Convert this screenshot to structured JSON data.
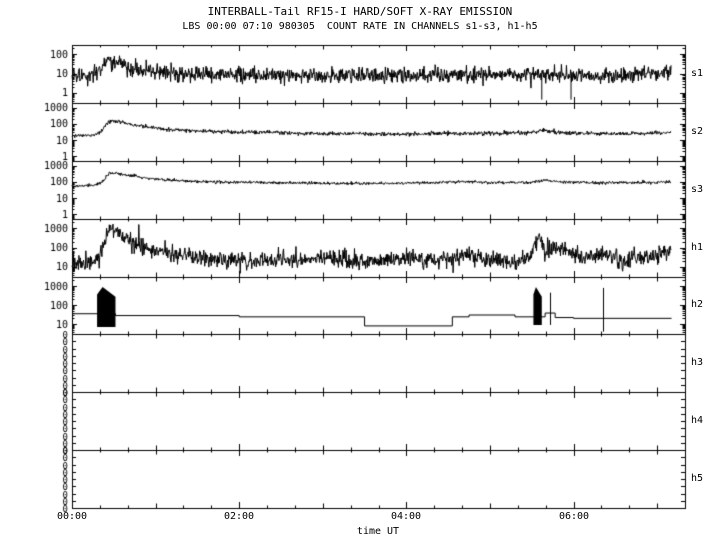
{
  "chart_data": {
    "type": "line",
    "title": "INTERBALL-Tail RF15-I HARD/SOFT X-RAY EMISSION",
    "subtitle": "LBS 00:00 07:10 980305  COUNT RATE IN CHANNELS s1-s3, h1-h5",
    "xlabel": "time UT",
    "background": "#ffffff",
    "axis_color": "#000000",
    "x_axis": {
      "range_hours": [
        0,
        7.3333
      ],
      "data_end_hour": 7.1667,
      "ticks": [
        {
          "hour": 0,
          "label": "00:00"
        },
        {
          "hour": 2,
          "label": "02:00"
        },
        {
          "hour": 4,
          "label": "04:00"
        },
        {
          "hour": 6,
          "label": "06:00"
        }
      ]
    },
    "panels": [
      {
        "label": "s1",
        "scale": "log",
        "y_min": 0.3,
        "y_max": 300,
        "y_ticks": [
          {
            "v": 100,
            "label": "100"
          },
          {
            "v": 10,
            "label": "10"
          },
          {
            "v": 1,
            "label": "1"
          }
        ],
        "style": "noisy",
        "noise_dex": 0.2,
        "seed": 1,
        "envelope": [
          [
            0,
            8
          ],
          [
            0.2,
            8
          ],
          [
            0.3,
            13
          ],
          [
            0.4,
            45
          ],
          [
            0.5,
            40
          ],
          [
            0.65,
            25
          ],
          [
            0.85,
            16
          ],
          [
            1.1,
            11
          ],
          [
            1.5,
            9.5
          ],
          [
            2,
            9
          ],
          [
            2.5,
            8.5
          ],
          [
            3,
            8
          ],
          [
            3.5,
            8
          ],
          [
            4,
            8
          ],
          [
            4.5,
            8.5
          ],
          [
            5,
            8
          ],
          [
            5.5,
            9.5
          ],
          [
            5.8,
            8
          ],
          [
            6.2,
            8
          ],
          [
            6.6,
            8
          ],
          [
            7.0,
            10
          ],
          [
            7.17,
            13
          ]
        ],
        "down_spikes": [
          [
            5.62,
            0.45
          ],
          [
            5.97,
            0.45
          ]
        ],
        "spike_prob": 0.006,
        "spike_factor": 0.25
      },
      {
        "label": "s2",
        "scale": "log",
        "y_min": 0.5,
        "y_max": 2000,
        "y_ticks": [
          {
            "v": 1000,
            "label": "1000"
          },
          {
            "v": 100,
            "label": "100"
          },
          {
            "v": 10,
            "label": "10"
          },
          {
            "v": 1,
            "label": "1"
          }
        ],
        "style": "noisy",
        "noise_dex": 0.06,
        "seed": 2,
        "envelope": [
          [
            0,
            18
          ],
          [
            0.25,
            20
          ],
          [
            0.35,
            35
          ],
          [
            0.45,
            160
          ],
          [
            0.6,
            130
          ],
          [
            0.8,
            75
          ],
          [
            1.1,
            48
          ],
          [
            1.5,
            36
          ],
          [
            2,
            31
          ],
          [
            2.5,
            28
          ],
          [
            3,
            26
          ],
          [
            3.5,
            24
          ],
          [
            4,
            24
          ],
          [
            4.5,
            26
          ],
          [
            5,
            26
          ],
          [
            5.5,
            30
          ],
          [
            5.65,
            42
          ],
          [
            5.8,
            30
          ],
          [
            6.2,
            26
          ],
          [
            6.6,
            25
          ],
          [
            7,
            28
          ],
          [
            7.17,
            31
          ]
        ]
      },
      {
        "label": "s3",
        "scale": "log",
        "y_min": 0.5,
        "y_max": 2000,
        "y_ticks": [
          {
            "v": 1000,
            "label": "1000"
          },
          {
            "v": 100,
            "label": "100"
          },
          {
            "v": 10,
            "label": "10"
          },
          {
            "v": 1,
            "label": "1"
          }
        ],
        "style": "noisy",
        "noise_dex": 0.045,
        "seed": 3,
        "envelope": [
          [
            0,
            55
          ],
          [
            0.25,
            62
          ],
          [
            0.35,
            85
          ],
          [
            0.45,
            380
          ],
          [
            0.6,
            300
          ],
          [
            0.85,
            185
          ],
          [
            1.1,
            135
          ],
          [
            1.5,
            108
          ],
          [
            2,
            96
          ],
          [
            2.5,
            89
          ],
          [
            3,
            84
          ],
          [
            3.5,
            81
          ],
          [
            4,
            83
          ],
          [
            4.4,
            96
          ],
          [
            4.7,
            106
          ],
          [
            5,
            90
          ],
          [
            5.5,
            97
          ],
          [
            5.65,
            130
          ],
          [
            5.85,
            100
          ],
          [
            6.2,
            91
          ],
          [
            6.6,
            89
          ],
          [
            7,
            96
          ],
          [
            7.17,
            102
          ]
        ]
      },
      {
        "label": "h1",
        "scale": "log",
        "y_min": 3,
        "y_max": 3000,
        "y_ticks": [
          {
            "v": 1000,
            "label": "1000"
          },
          {
            "v": 100,
            "label": "100"
          },
          {
            "v": 10,
            "label": "10"
          }
        ],
        "style": "noisy",
        "noise_dex": 0.22,
        "seed": 4,
        "envelope": [
          [
            0,
            12
          ],
          [
            0.25,
            15
          ],
          [
            0.35,
            70
          ],
          [
            0.45,
            900
          ],
          [
            0.52,
            750
          ],
          [
            0.62,
            350
          ],
          [
            0.8,
            130
          ],
          [
            1.0,
            65
          ],
          [
            1.3,
            38
          ],
          [
            1.6,
            27
          ],
          [
            2,
            21
          ],
          [
            2.4,
            26
          ],
          [
            2.7,
            21
          ],
          [
            3.0,
            32
          ],
          [
            3.3,
            21
          ],
          [
            3.6,
            19
          ],
          [
            4.0,
            26
          ],
          [
            4.3,
            20
          ],
          [
            4.7,
            42
          ],
          [
            5.0,
            21
          ],
          [
            5.3,
            18
          ],
          [
            5.5,
            60
          ],
          [
            5.58,
            350
          ],
          [
            5.66,
            70
          ],
          [
            5.9,
            90
          ],
          [
            6.1,
            26
          ],
          [
            6.35,
            55
          ],
          [
            6.6,
            21
          ],
          [
            7.0,
            42
          ],
          [
            7.17,
            65
          ]
        ],
        "spike_prob": 0.008,
        "spike_factor": 3
      },
      {
        "label": "h2",
        "scale": "log",
        "y_min": 3,
        "y_max": 3000,
        "y_ticks": [
          {
            "v": 1000,
            "label": "1000"
          },
          {
            "v": 100,
            "label": "100"
          },
          {
            "v": 10,
            "label": "10"
          }
        ],
        "style": "steps",
        "steps": [
          [
            0,
            35
          ],
          [
            0.52,
            28
          ],
          [
            2.0,
            24
          ],
          [
            3.5,
            8
          ],
          [
            4.55,
            24
          ],
          [
            4.75,
            30
          ],
          [
            5.3,
            24
          ],
          [
            5.66,
            38
          ],
          [
            5.78,
            22
          ],
          [
            6.0,
            20
          ],
          [
            7.17,
            20
          ]
        ],
        "blocks": [
          {
            "t0": 0.3,
            "t1": 0.52,
            "lo": 7,
            "hi": 900
          },
          {
            "t0": 5.52,
            "t1": 5.62,
            "lo": 9,
            "hi": 900
          }
        ],
        "vlines": [
          {
            "t": 5.72,
            "lo": 9,
            "hi": 450
          },
          {
            "t": 6.35,
            "lo": 4,
            "hi": 800
          }
        ]
      },
      {
        "label": "h3",
        "scale": "linear",
        "style": "empty",
        "y_ticks": [
          {
            "label": "0"
          },
          {
            "label": "0"
          },
          {
            "label": "0"
          },
          {
            "label": "0"
          },
          {
            "label": "0"
          },
          {
            "label": "0"
          },
          {
            "label": "0"
          },
          {
            "label": "0"
          },
          {
            "label": "0"
          }
        ]
      },
      {
        "label": "h4",
        "scale": "linear",
        "style": "empty",
        "y_ticks": [
          {
            "label": "0"
          },
          {
            "label": "0"
          },
          {
            "label": "0"
          },
          {
            "label": "0"
          },
          {
            "label": "0"
          },
          {
            "label": "0"
          },
          {
            "label": "0"
          },
          {
            "label": "0"
          },
          {
            "label": "0"
          }
        ]
      },
      {
        "label": "h5",
        "scale": "linear",
        "style": "empty",
        "y_ticks": [
          {
            "label": "0"
          },
          {
            "label": "0"
          },
          {
            "label": "0"
          },
          {
            "label": "0"
          },
          {
            "label": "0"
          },
          {
            "label": "0"
          },
          {
            "label": "0"
          },
          {
            "label": "0"
          },
          {
            "label": "0"
          }
        ]
      }
    ]
  }
}
